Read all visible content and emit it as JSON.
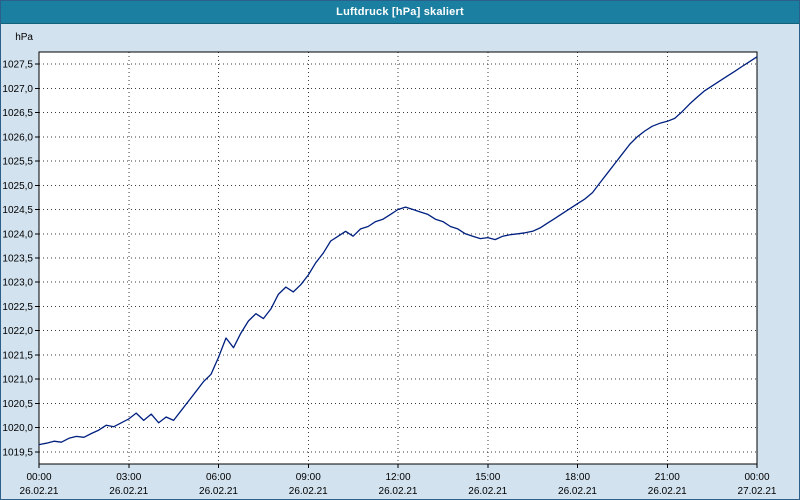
{
  "window": {
    "title": "Luftdruck [hPa] skaliert"
  },
  "colors": {
    "titlebar": "#1a7fa0",
    "background": "#d2e2ef",
    "plot_background": "#ffffff",
    "plot_border": "#000000",
    "grid": "#3a3a3a",
    "line": "#002080",
    "axis_text": "#000000"
  },
  "chart_data": {
    "type": "line",
    "title": "Luftdruck [hPa] skaliert",
    "y_axis_unit_label": "hPa",
    "decimal_separator": ",",
    "grid": true,
    "legend_position": "none",
    "ylim": [
      1019.25,
      1027.75
    ],
    "y_grid_min": 1019.5,
    "y_grid_max": 1027.5,
    "y_grid_step": 0.5,
    "xlim_hours": [
      0,
      24
    ],
    "x_ticks": [
      {
        "hour": 0,
        "time": "00:00",
        "date": "26.02.21"
      },
      {
        "hour": 3,
        "time": "03:00",
        "date": "26.02.21"
      },
      {
        "hour": 6,
        "time": "06:00",
        "date": "26.02.21"
      },
      {
        "hour": 9,
        "time": "09:00",
        "date": "26.02.21"
      },
      {
        "hour": 12,
        "time": "12:00",
        "date": "26.02.21"
      },
      {
        "hour": 15,
        "time": "15:00",
        "date": "26.02.21"
      },
      {
        "hour": 18,
        "time": "18:00",
        "date": "26.02.21"
      },
      {
        "hour": 21,
        "time": "21:00",
        "date": "26.02.21"
      },
      {
        "hour": 24,
        "time": "00:00",
        "date": "27.02.21"
      }
    ],
    "series": [
      {
        "name": "Luftdruck",
        "color": "#002080",
        "x_start_hour": 0,
        "x_step_hours": 0.25,
        "values": [
          1019.65,
          1019.68,
          1019.72,
          1019.7,
          1019.78,
          1019.82,
          1019.8,
          1019.88,
          1019.95,
          1020.05,
          1020.02,
          1020.1,
          1020.18,
          1020.3,
          1020.15,
          1020.28,
          1020.1,
          1020.22,
          1020.15,
          1020.35,
          1020.55,
          1020.75,
          1020.95,
          1021.1,
          1021.45,
          1021.85,
          1021.65,
          1021.95,
          1022.2,
          1022.35,
          1022.25,
          1022.45,
          1022.75,
          1022.9,
          1022.8,
          1022.95,
          1023.15,
          1023.4,
          1023.6,
          1023.85,
          1023.95,
          1024.05,
          1023.95,
          1024.1,
          1024.15,
          1024.25,
          1024.3,
          1024.4,
          1024.5,
          1024.55,
          1024.5,
          1024.45,
          1024.4,
          1024.3,
          1024.25,
          1024.15,
          1024.1,
          1024.0,
          1023.95,
          1023.9,
          1023.92,
          1023.88,
          1023.95,
          1023.98,
          1024.0,
          1024.02,
          1024.05,
          1024.12,
          1024.22,
          1024.32,
          1024.42,
          1024.52,
          1024.62,
          1024.72,
          1024.85,
          1025.05,
          1025.25,
          1025.45,
          1025.65,
          1025.85,
          1026.0,
          1026.12,
          1026.22,
          1026.28,
          1026.32,
          1026.38,
          1026.52,
          1026.68,
          1026.82,
          1026.95,
          1027.05,
          1027.15,
          1027.25,
          1027.35,
          1027.45,
          1027.55,
          1027.65
        ]
      }
    ]
  }
}
